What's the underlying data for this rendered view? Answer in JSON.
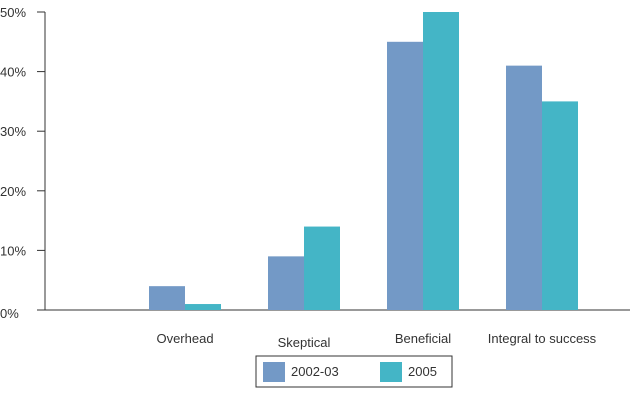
{
  "chart_data": {
    "type": "bar",
    "categories": [
      "Overhead",
      "Skeptical",
      "Beneficial",
      "Integral to success"
    ],
    "series": [
      {
        "name": "2002-03",
        "values": [
          4,
          9,
          45,
          41
        ],
        "color": "#7399c6"
      },
      {
        "name": "2005",
        "values": [
          1,
          14,
          50,
          35
        ],
        "color": "#44b5c6"
      }
    ],
    "y_ticks": [
      "0%",
      "10%",
      "20%",
      "30%",
      "40%",
      "50%"
    ],
    "y_tick_values": [
      0,
      10,
      20,
      30,
      40,
      50
    ],
    "ylim": [
      0,
      50
    ],
    "title": "",
    "xlabel": "",
    "ylabel": "",
    "grid": false,
    "legend_position": "bottom-center",
    "axis_color": "#333333"
  }
}
